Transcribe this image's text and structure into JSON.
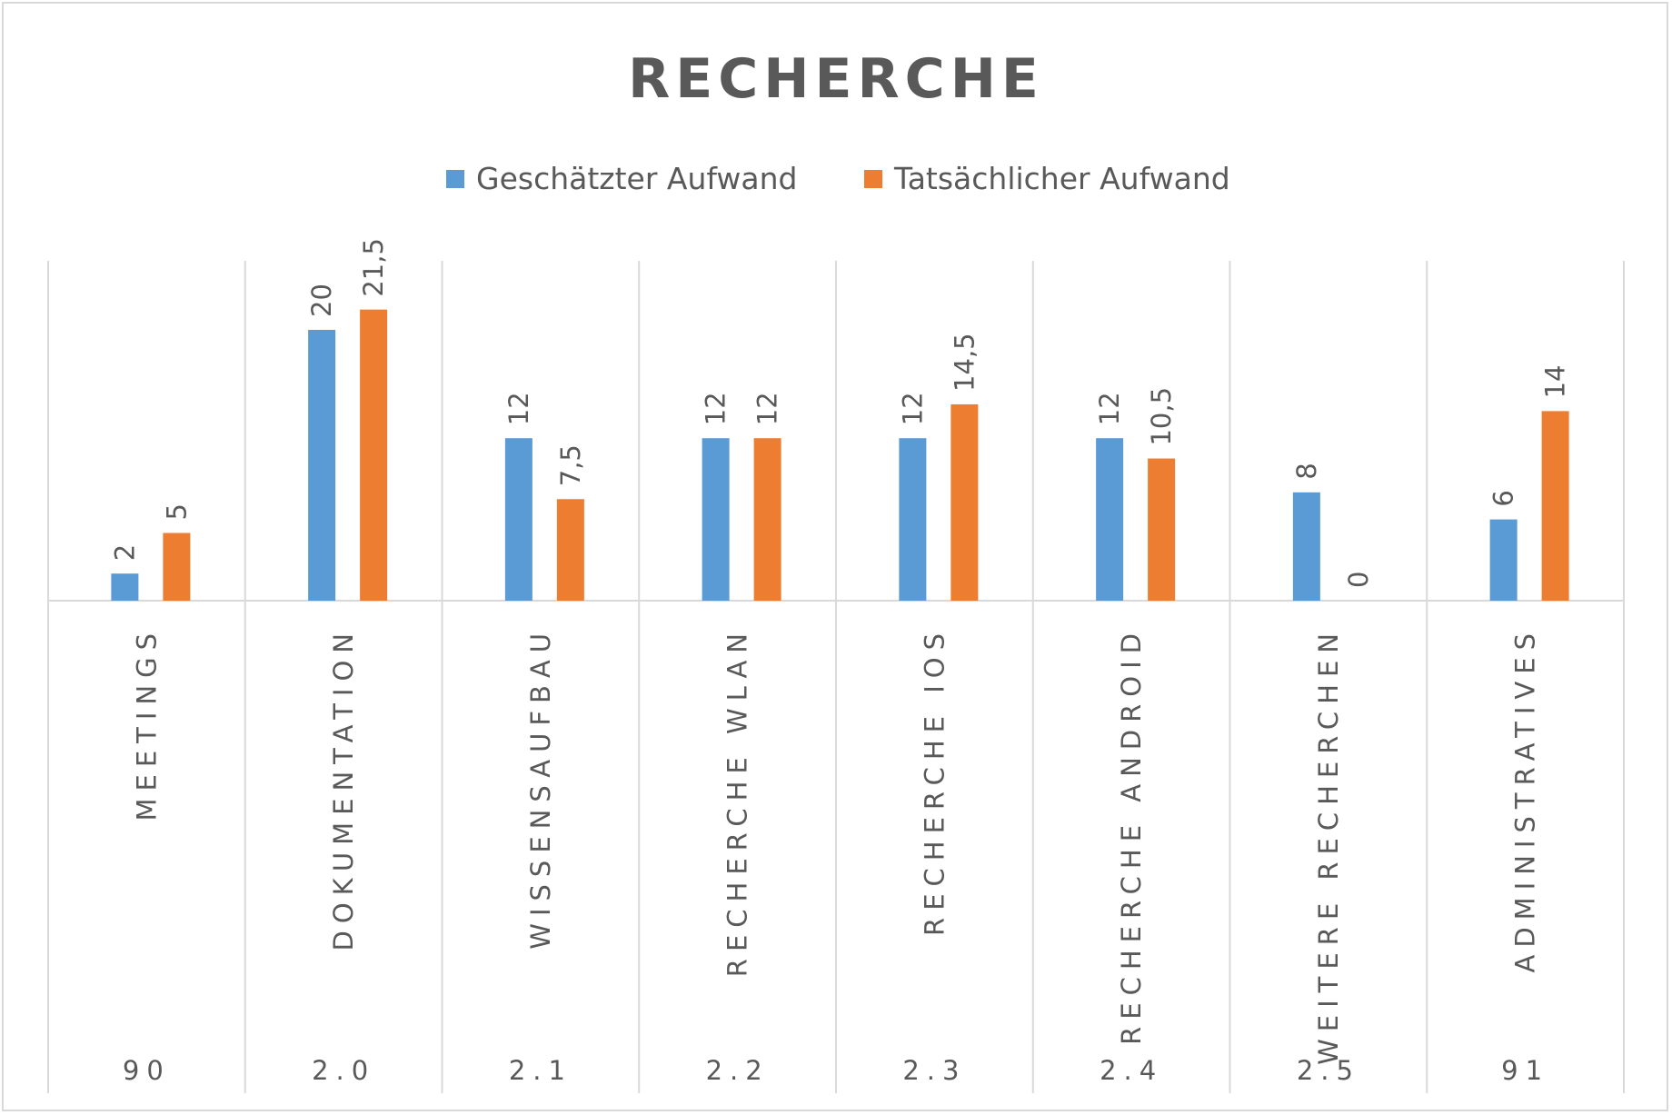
{
  "chart_data": {
    "type": "bar",
    "title": "RECHERCHE",
    "categories": [
      "MEETINGS",
      "DOKUMENTATION",
      "WISSENSAUFBAU",
      "RECHERCHE WLAN",
      "RECHERCHE IOS",
      "RECHERCHE ANDROID",
      "WEITERE RECHERCHEN",
      "ADMINISTRATIVES"
    ],
    "codes": [
      "90",
      "2.0",
      "2.1",
      "2.2",
      "2.3",
      "2.4",
      "2.5",
      "91"
    ],
    "series": [
      {
        "name": "Geschätzter Aufwand",
        "color": "#5b9bd5",
        "values": [
          2,
          20,
          12,
          12,
          12,
          12,
          8,
          6
        ],
        "labels": [
          "2",
          "20",
          "12",
          "12",
          "12",
          "12",
          "8",
          "6"
        ]
      },
      {
        "name": "Tatsächlicher Aufwand",
        "color": "#ed7d31",
        "values": [
          5,
          21.5,
          7.5,
          12,
          14.5,
          10.5,
          0,
          14
        ],
        "labels": [
          "5",
          "21,5",
          "7,5",
          "12",
          "14,5",
          "10,5",
          "0",
          "14"
        ]
      }
    ],
    "legend_position": "top",
    "grid": false
  }
}
